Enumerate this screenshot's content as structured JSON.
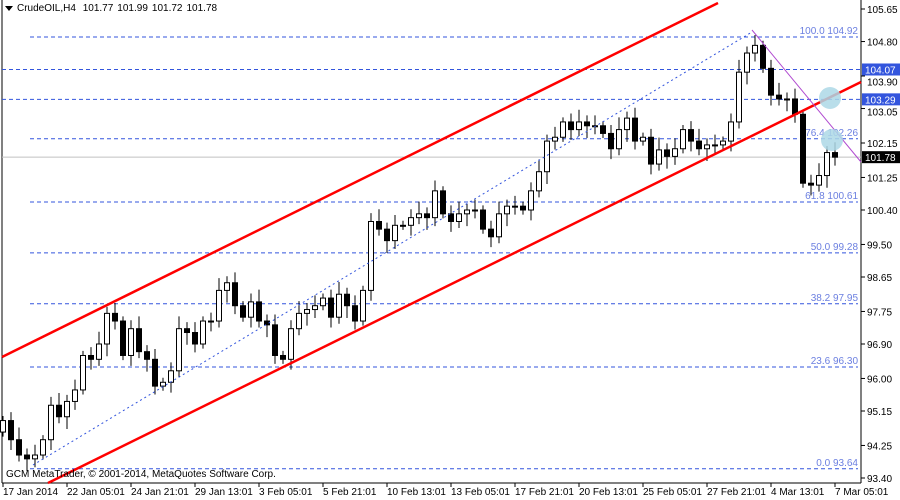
{
  "header": {
    "symbol": "CrudeOIL,H4",
    "open": "101.77",
    "high": "101.99",
    "low": "101.72",
    "close": "101.78"
  },
  "copyright": "GCM MetaTrader, © 2001-2014, MetaQuotes Software Corp.",
  "colors": {
    "background": "#ffffff",
    "channel": "#ff0000",
    "fibo": "#3355dd",
    "fibo_text": "#6b7fe0",
    "trend": "#b04ad0",
    "marker": "#add8e6",
    "bid_line": "#c0c0c0",
    "label_blue": "#3355dd"
  },
  "chart_data": {
    "type": "candlestick",
    "title": "",
    "y_axis": {
      "range": [
        93.4,
        105.65
      ],
      "ticks": [
        "105.65",
        "104.80",
        "103.90",
        "103.05",
        "102.15",
        "101.25",
        "100.40",
        "99.50",
        "98.65",
        "97.75",
        "96.90",
        "96.00",
        "95.15",
        "94.25",
        "93.40"
      ]
    },
    "x_axis": {
      "ticks": [
        "17 Jan 2014",
        "22 Jan 05:01",
        "24 Jan 21:01",
        "29 Jan 13:01",
        "3 Feb 05:01",
        "5 Feb 21:01",
        "10 Feb 13:01",
        "13 Feb 05:01",
        "17 Feb 21:01",
        "20 Feb 13:01",
        "25 Feb 05:01",
        "27 Feb 21:01",
        "4 Mar 13:01",
        "7 Mar 05:01"
      ]
    },
    "first_open": 94.6,
    "close": [
      94.9,
      94.4,
      94.0,
      93.9,
      94.0,
      94.4,
      95.3,
      95.0,
      95.4,
      95.7,
      96.6,
      96.5,
      96.9,
      97.7,
      97.5,
      96.6,
      97.3,
      96.7,
      96.5,
      95.8,
      95.9,
      96.2,
      97.3,
      97.2,
      96.9,
      97.5,
      97.5,
      98.3,
      98.5,
      97.9,
      97.6,
      98.0,
      97.5,
      97.4,
      96.6,
      96.5,
      97.3,
      97.7,
      97.8,
      97.9,
      98.1,
      97.6,
      98.2,
      97.9,
      97.5,
      98.3,
      100.1,
      99.9,
      99.6,
      100.0,
      100.0,
      100.2,
      100.3,
      100.2,
      100.9,
      100.3,
      100.1,
      100.3,
      100.4,
      100.4,
      99.9,
      99.7,
      100.3,
      100.5,
      100.5,
      100.4,
      100.9,
      101.4,
      102.2,
      102.3,
      102.7,
      102.5,
      102.7,
      102.6,
      102.6,
      102.4,
      102.0,
      102.5,
      102.8,
      102.2,
      102.3,
      101.6,
      101.97,
      101.8,
      102.0,
      102.5,
      102.2,
      102.0,
      102.1,
      102.1,
      102.2,
      102.7,
      104.0,
      104.5,
      104.7,
      104.1,
      103.4,
      103.3,
      103.3,
      102.9,
      101.1,
      101.05,
      101.3,
      101.9,
      101.78
    ],
    "fibonacci": [
      {
        "level": "100.0",
        "price": 104.92,
        "label": "100.0 104.92"
      },
      {
        "level": "76.4",
        "price": 102.26,
        "label": "76.4 102.26"
      },
      {
        "level": "61.8",
        "price": 100.61,
        "label": "61.8 100.61"
      },
      {
        "level": "50.0",
        "price": 99.28,
        "label": "50.0 99.28"
      },
      {
        "level": "38.2",
        "price": 97.95,
        "label": "38.2 97.95"
      },
      {
        "level": "23.6",
        "price": 96.3,
        "label": "23.6 96.30"
      },
      {
        "level": "0.0",
        "price": 93.64,
        "label": "0.0 93.64"
      }
    ],
    "horizontal_lines": [
      {
        "price": 104.07,
        "label": "104.07"
      },
      {
        "price": 103.29,
        "label": "103.29"
      }
    ],
    "current_price": {
      "price": 101.78,
      "label": "101.78"
    },
    "trend_channel": {
      "upper": [
        [
          94.9,
          "17 Jan 2014"
        ],
        [
          105.65,
          "27 Feb"
        ]
      ],
      "lower": [
        [
          93.4,
          "17 Jan"
        ],
        [
          104.2,
          "7 Mar"
        ]
      ]
    }
  }
}
